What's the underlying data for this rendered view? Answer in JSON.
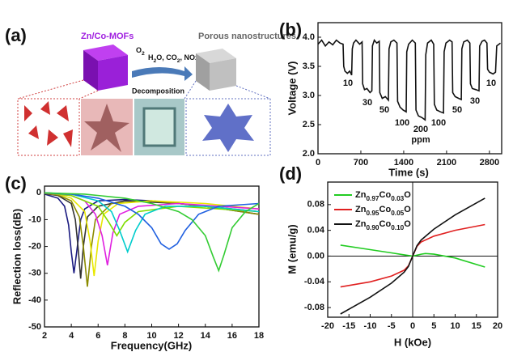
{
  "diagram": {
    "panel_label": "(a)",
    "precursor": "Zn/Co-MOFs",
    "product": "Porous nanostructures",
    "gas_top": "O2",
    "gas_bottom": "H2O, CO2, NOx",
    "process": "Decomposition"
  },
  "chart_data": [
    {
      "type": "line",
      "panel_label": "(b)",
      "x_label": "Time (s)",
      "y_label": "Voltage (V)",
      "xlim": [
        0,
        3000
      ],
      "ylim": [
        2,
        4.25
      ],
      "xticks": [
        0,
        700,
        1400,
        2100,
        2800
      ],
      "yticks": [
        {
          "value": 2,
          "label": "2.0"
        },
        2.5,
        {
          "value": 3,
          "label": "3.0"
        },
        3.5,
        {
          "value": 4,
          "label": "4.0"
        }
      ],
      "series": [
        {
          "color": "#111111",
          "x": [
            0,
            60,
            120,
            180,
            240,
            300,
            360,
            410,
            420,
            440,
            480,
            520,
            550,
            560,
            580,
            620,
            680,
            720,
            730,
            760,
            800,
            850,
            880,
            890,
            920,
            960,
            1000,
            1010,
            1050,
            1100,
            1150,
            1160,
            1190,
            1240,
            1290,
            1300,
            1340,
            1390,
            1440,
            1450,
            1480,
            1540,
            1590,
            1600,
            1640,
            1700,
            1750,
            1760,
            1790,
            1850,
            1890,
            1900,
            1940,
            2000,
            2050,
            2060,
            2090,
            2150,
            2190,
            2200,
            2240,
            2300,
            2340,
            2350,
            2380,
            2440,
            2480,
            2490,
            2520,
            2580,
            2630,
            2640,
            2680,
            2720,
            2760,
            2770,
            2800,
            2860,
            2900,
            2920,
            2980
          ],
          "values": [
            3.88,
            3.95,
            3.85,
            3.92,
            3.87,
            3.95,
            3.9,
            3.88,
            3.5,
            3.42,
            3.38,
            3.42,
            3.35,
            3.8,
            3.9,
            3.95,
            3.88,
            3.92,
            3.2,
            3.1,
            3.12,
            3.05,
            3.08,
            3.85,
            3.95,
            3.9,
            3.93,
            3.05,
            2.95,
            2.98,
            2.92,
            3.8,
            3.92,
            3.95,
            3.9,
            2.9,
            2.8,
            2.75,
            2.72,
            3.75,
            3.88,
            3.95,
            3.9,
            2.75,
            2.65,
            2.62,
            2.58,
            3.7,
            3.9,
            3.95,
            3.88,
            2.85,
            2.75,
            2.72,
            2.7,
            3.75,
            3.9,
            3.95,
            3.92,
            3.05,
            2.98,
            2.95,
            2.93,
            3.8,
            3.92,
            3.95,
            3.9,
            3.2,
            3.12,
            3.1,
            3.08,
            3.85,
            3.93,
            3.95,
            3.9,
            3.45,
            3.4,
            3.37,
            3.4,
            3.85,
            3.9
          ]
        }
      ],
      "annotations": [
        "10",
        "30",
        "50",
        "100",
        "200",
        "100",
        "50",
        "30",
        "10"
      ],
      "annotation_unit": "ppm"
    },
    {
      "type": "line",
      "panel_label": "(c)",
      "x_label": "Frequency(GHz)",
      "y_label": "Reflection loss(dB)",
      "xlim": [
        2,
        18
      ],
      "ylim": [
        -50,
        2.5
      ],
      "xticks": [
        2,
        4,
        6,
        8,
        10,
        12,
        14,
        16,
        18
      ],
      "yticks": [
        0,
        -10,
        -20,
        -30,
        -40,
        -50
      ],
      "series": [
        {
          "color": "#1a1a80",
          "x": [
            2,
            3,
            3.5,
            3.8,
            4,
            4.2,
            4.4,
            4.7,
            5,
            6,
            8,
            10,
            14,
            18
          ],
          "values": [
            -0.5,
            -2,
            -5,
            -12,
            -22,
            -30,
            -22,
            -10,
            -6,
            -3,
            -2.5,
            -3,
            -5,
            -8
          ]
        },
        {
          "color": "#333333",
          "x": [
            2,
            3,
            4,
            4.3,
            4.5,
            4.7,
            4.9,
            5.2,
            6,
            8,
            12,
            18
          ],
          "values": [
            -0.3,
            -1,
            -4,
            -10,
            -20,
            -32,
            -20,
            -9,
            -5,
            -3,
            -4,
            -7
          ]
        },
        {
          "color": "#8b8b00",
          "x": [
            2,
            3,
            4,
            4.6,
            4.9,
            5.2,
            5.5,
            5.8,
            7,
            10,
            14,
            18
          ],
          "values": [
            -0.2,
            -0.8,
            -3,
            -9,
            -20,
            -35,
            -20,
            -10,
            -4,
            -3,
            -5,
            -8
          ]
        },
        {
          "color": "#e8e800",
          "x": [
            2,
            3,
            4,
            5,
            5.4,
            5.7,
            6,
            6.4,
            7.5,
            10,
            14,
            18
          ],
          "values": [
            -0.1,
            -0.5,
            -2,
            -7,
            -18,
            -31,
            -18,
            -8,
            -4,
            -3,
            -4,
            -6
          ]
        },
        {
          "color": "#e020e0",
          "x": [
            2,
            4,
            5,
            5.8,
            6.3,
            6.7,
            7.1,
            7.6,
            9,
            12,
            18
          ],
          "values": [
            -0.1,
            -1,
            -3,
            -8,
            -16,
            -27,
            -15,
            -8,
            -5,
            -4,
            -6
          ]
        },
        {
          "color": "#7fdd00",
          "x": [
            2,
            4,
            6,
            6.8,
            7.4,
            8,
            9,
            12,
            18
          ],
          "values": [
            0,
            -1,
            -5,
            -11,
            -16,
            -11,
            -7,
            -5,
            -7
          ]
        },
        {
          "color": "#00cccc",
          "x": [
            2,
            4,
            6,
            7,
            7.6,
            8.2,
            8.8,
            9.5,
            11,
            14,
            18
          ],
          "values": [
            0,
            -0.5,
            -3,
            -7,
            -14,
            -22,
            -14,
            -8,
            -5,
            -5,
            -7
          ]
        },
        {
          "color": "#2060e0",
          "x": [
            2,
            4,
            6,
            8,
            9,
            10,
            10.7,
            11.3,
            11.9,
            12.5,
            13.5,
            15,
            18
          ],
          "values": [
            0,
            -0.5,
            -2,
            -5,
            -8,
            -13,
            -19,
            -21,
            -19,
            -14,
            -8,
            -5,
            -4
          ]
        },
        {
          "color": "#33cc33",
          "x": [
            2,
            5,
            8,
            10,
            12,
            13,
            14,
            14.6,
            15,
            15.4,
            16,
            17,
            18
          ],
          "values": [
            0,
            -0.5,
            -2,
            -4,
            -7,
            -10,
            -16,
            -24,
            -29,
            -23,
            -13,
            -7,
            -4
          ]
        }
      ]
    },
    {
      "type": "line",
      "panel_label": "(d)",
      "x_label": "H (kOe)",
      "y_label": "M (emu/g)",
      "xlim": [
        -20,
        20
      ],
      "ylim": [
        -0.095,
        0.115
      ],
      "xticks": [
        -20,
        -15,
        -10,
        -5,
        0,
        5,
        10,
        15,
        20
      ],
      "yticks": [
        0.08,
        0.04,
        {
          "value": 0,
          "label": "0.00"
        },
        -0.04,
        -0.08
      ],
      "legend": "upper left",
      "series": [
        {
          "name": "Zn0.97Co0.03O",
          "color": "#22cc22",
          "x": [
            -17,
            -10,
            -5,
            -2,
            0,
            2,
            3,
            5,
            10,
            17
          ],
          "values": [
            0.017,
            0.01,
            0.005,
            0.002,
            0,
            0.003,
            0.004,
            0.003,
            -0.003,
            -0.017
          ]
        },
        {
          "name": "Zn0.95Co0.05O",
          "color": "#e02020",
          "x": [
            -17,
            -10,
            -5,
            -2,
            -1,
            0,
            1,
            2,
            5,
            10,
            17
          ],
          "values": [
            -0.048,
            -0.04,
            -0.031,
            -0.022,
            -0.015,
            0,
            0.015,
            0.022,
            0.031,
            0.04,
            0.049
          ]
        },
        {
          "name": "Zn0.90Co0.10O",
          "color": "#111111",
          "x": [
            -17,
            -10,
            -5,
            -2,
            -1,
            0,
            1,
            2,
            5,
            10,
            17
          ],
          "values": [
            -0.09,
            -0.064,
            -0.042,
            -0.025,
            -0.016,
            0,
            0.016,
            0.025,
            0.042,
            0.064,
            0.09
          ]
        }
      ]
    }
  ]
}
